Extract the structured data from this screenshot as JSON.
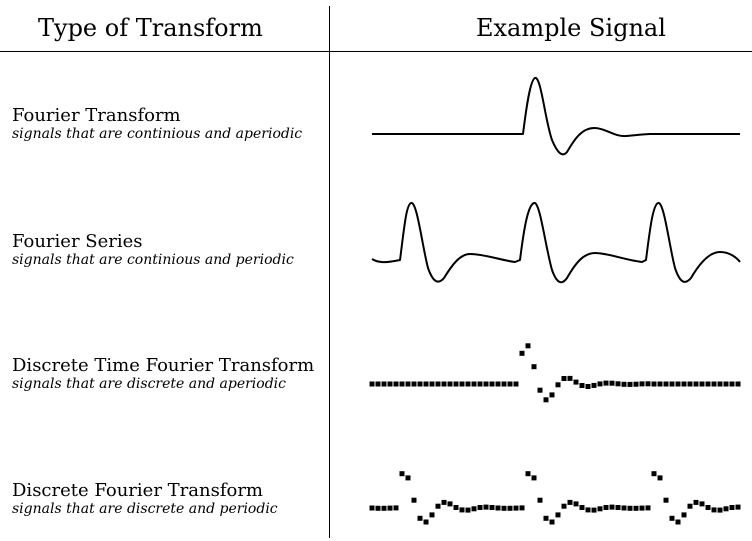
{
  "headers": {
    "type_of_transform": "Type of Transform",
    "example_signal": "Example Signal"
  },
  "rows": [
    {
      "title": "Fourier Transform",
      "subtitle": "signals that are continious and aperiodic",
      "signal_kind": "continuous-aperiodic"
    },
    {
      "title": "Fourier Series",
      "subtitle": "signals that are continious and periodic",
      "signal_kind": "continuous-periodic"
    },
    {
      "title": "Discrete Time Fourier Transform",
      "subtitle": "signals that are discrete and aperiodic",
      "signal_kind": "discrete-aperiodic"
    },
    {
      "title": "Discrete Fourier Transform",
      "subtitle": "signals that are discrete and periodic",
      "signal_kind": "discrete-periodic"
    }
  ],
  "colors": {
    "ink": "#000000",
    "background": "#ffffff"
  }
}
